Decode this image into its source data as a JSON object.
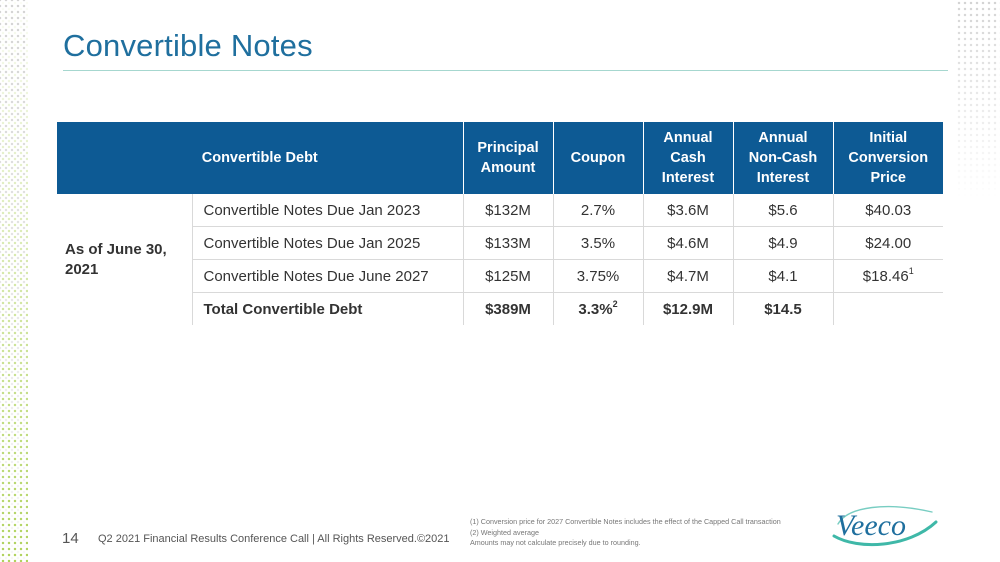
{
  "slide": {
    "title": "Convertible Notes"
  },
  "table": {
    "headers": [
      "Convertible Debt",
      "Principal\nAmount",
      "Coupon",
      "Annual\nCash\nInterest",
      "Annual\nNon-Cash\nInterest",
      "Initial\nConversion\nPrice"
    ],
    "row_group_label": "As of June 30,\n2021",
    "rows": [
      {
        "name": "Convertible Notes Due Jan 2023",
        "principal": "$132M",
        "coupon": "2.7%",
        "cash": "$3.6M",
        "noncash": "$5.6",
        "price": "$40.03",
        "price_sup": ""
      },
      {
        "name": "Convertible Notes Due Jan 2025",
        "principal": "$133M",
        "coupon": "3.5%",
        "cash": "$4.6M",
        "noncash": "$4.9",
        "price": "$24.00",
        "price_sup": ""
      },
      {
        "name": "Convertible Notes Due June 2027",
        "principal": "$125M",
        "coupon": "3.75%",
        "cash": "$4.7M",
        "noncash": "$4.1",
        "price": "$18.46",
        "price_sup": "1"
      }
    ],
    "total": {
      "name": "Total Convertible Debt",
      "principal": "$389M",
      "coupon": "3.3%",
      "coupon_sup": "2",
      "cash": "$12.9M",
      "noncash": "$14.5",
      "price": ""
    }
  },
  "footer": {
    "page_number": "14",
    "text": "Q2 2021 Financial Results Conference Call  |  All Rights Reserved.©2021",
    "footnotes": [
      "(1) Conversion price for 2027 Convertible Notes includes the effect of the Capped Call transaction",
      "(2) Weighted average",
      "Amounts may not calculate precisely due to rounding."
    ]
  },
  "logo": {
    "text": "Veeco",
    "colors": {
      "text": "#1f6f9e",
      "swoosh": "#3fb8a8"
    }
  },
  "colors": {
    "title": "#1f6f9e",
    "header_bg": "#0d5a94",
    "rule": "#a6d7cf"
  }
}
